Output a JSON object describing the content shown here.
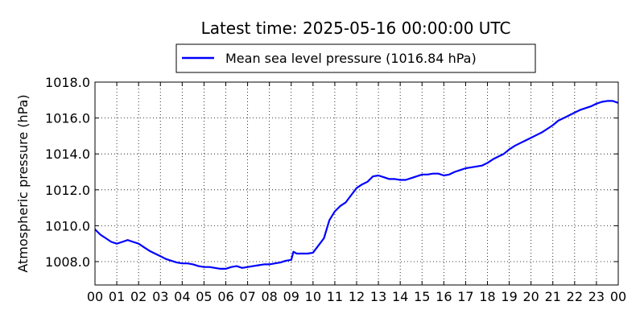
{
  "chart_data": {
    "type": "line",
    "title": "Latest time: 2025-05-16 00:00:00 UTC",
    "xlabel": "",
    "ylabel": "Atmospheric pressure (hPa)",
    "x_tick_labels": [
      "00",
      "01",
      "02",
      "03",
      "04",
      "05",
      "06",
      "07",
      "08",
      "09",
      "10",
      "11",
      "12",
      "13",
      "14",
      "15",
      "16",
      "17",
      "18",
      "19",
      "20",
      "21",
      "22",
      "23",
      "00"
    ],
    "y_tick_labels": [
      "1008.0",
      "1010.0",
      "1012.0",
      "1014.0",
      "1016.0",
      "1018.0"
    ],
    "y_ticks": [
      1008,
      1010,
      1012,
      1014,
      1016,
      1018
    ],
    "xlim": [
      0,
      24
    ],
    "ylim": [
      1006.7,
      1018.0
    ],
    "grid": true,
    "legend_position": "top-center",
    "series": [
      {
        "name": "Mean sea level pressure (1016.84 hPa)",
        "color": "#0000ff",
        "x": [
          0,
          0.25,
          0.5,
          0.75,
          1.0,
          1.25,
          1.5,
          1.75,
          2.0,
          2.25,
          2.5,
          2.75,
          3.0,
          3.25,
          3.5,
          3.75,
          4.0,
          4.25,
          4.5,
          4.75,
          5.0,
          5.25,
          5.5,
          5.75,
          6.0,
          6.25,
          6.5,
          6.75,
          7.0,
          7.25,
          7.5,
          7.75,
          8.0,
          8.25,
          8.5,
          8.75,
          9.0,
          9.1,
          9.25,
          9.5,
          9.75,
          10.0,
          10.25,
          10.5,
          10.75,
          11.0,
          11.25,
          11.5,
          11.75,
          12.0,
          12.25,
          12.5,
          12.75,
          13.0,
          13.25,
          13.5,
          13.75,
          14.0,
          14.25,
          14.5,
          14.75,
          15.0,
          15.25,
          15.5,
          15.75,
          16.0,
          16.25,
          16.5,
          16.75,
          17.0,
          17.25,
          17.5,
          17.75,
          18.0,
          18.25,
          18.5,
          18.75,
          19.0,
          19.25,
          19.5,
          19.75,
          20.0,
          20.25,
          20.5,
          20.75,
          21.0,
          21.25,
          21.5,
          21.75,
          22.0,
          22.25,
          22.5,
          22.75,
          23.0,
          23.25,
          23.5,
          23.75,
          24.0
        ],
        "y": [
          1009.8,
          1009.5,
          1009.3,
          1009.1,
          1009.0,
          1009.1,
          1009.2,
          1009.1,
          1009.0,
          1008.8,
          1008.6,
          1008.45,
          1008.3,
          1008.15,
          1008.05,
          1007.95,
          1007.9,
          1007.9,
          1007.85,
          1007.75,
          1007.7,
          1007.7,
          1007.65,
          1007.6,
          1007.6,
          1007.7,
          1007.75,
          1007.65,
          1007.7,
          1007.75,
          1007.8,
          1007.85,
          1007.85,
          1007.9,
          1007.95,
          1008.05,
          1008.1,
          1008.55,
          1008.45,
          1008.45,
          1008.45,
          1008.5,
          1008.9,
          1009.3,
          1010.3,
          1010.8,
          1011.1,
          1011.3,
          1011.7,
          1012.1,
          1012.3,
          1012.45,
          1012.75,
          1012.8,
          1012.7,
          1012.6,
          1012.6,
          1012.55,
          1012.55,
          1012.65,
          1012.75,
          1012.85,
          1012.85,
          1012.9,
          1012.9,
          1012.8,
          1012.85,
          1013.0,
          1013.1,
          1013.2,
          1013.25,
          1013.3,
          1013.35,
          1013.5,
          1013.7,
          1013.85,
          1014.0,
          1014.25,
          1014.45,
          1014.6,
          1014.75,
          1014.9,
          1015.05,
          1015.2,
          1015.4,
          1015.6,
          1015.85,
          1016.0,
          1016.15,
          1016.3,
          1016.45,
          1016.55,
          1016.65,
          1016.8,
          1016.9,
          1016.95,
          1016.95,
          1016.84
        ]
      }
    ]
  }
}
